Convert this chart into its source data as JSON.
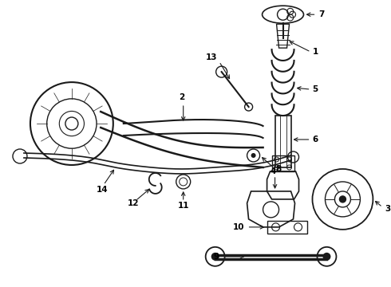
{
  "background_color": "#ffffff",
  "fig_width": 4.9,
  "fig_height": 3.6,
  "dpi": 100,
  "line_color": "#1a1a1a",
  "text_color": "#000000",
  "line_width": 1.0
}
